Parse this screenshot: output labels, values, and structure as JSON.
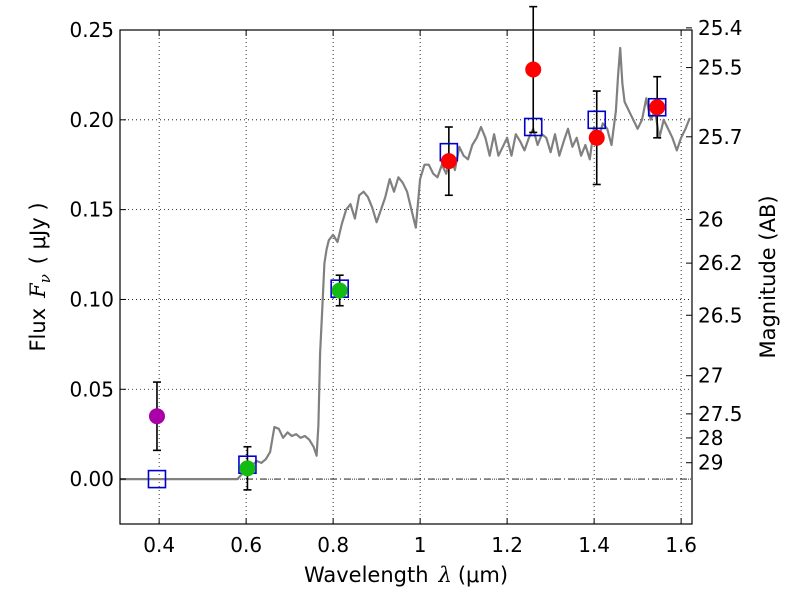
{
  "chart_data": {
    "type": "scatter",
    "xlabel": "Wavelength",
    "xlabel_symbol": "λ",
    "xlabel_unit": "(μm)",
    "ylabel": "Flux",
    "ylabel_symbol": "F",
    "ylabel_subscript": "ν",
    "ylabel_unit": "( μJy )",
    "y2label": "Magnitude (AB)",
    "xlim": [
      0.31,
      1.625
    ],
    "ylim": [
      -0.025,
      0.25
    ],
    "grid": true,
    "x_ticks": [
      {
        "value": 0.4,
        "label": "0.4"
      },
      {
        "value": 0.6,
        "label": "0.6"
      },
      {
        "value": 0.8,
        "label": "0.8"
      },
      {
        "value": 1.0,
        "label": "1"
      },
      {
        "value": 1.2,
        "label": "1.2"
      },
      {
        "value": 1.4,
        "label": "1.4"
      },
      {
        "value": 1.6,
        "label": "1.6"
      }
    ],
    "y_ticks": [
      {
        "value": 0.0,
        "label": "0.00"
      },
      {
        "value": 0.05,
        "label": "0.05"
      },
      {
        "value": 0.1,
        "label": "0.10"
      },
      {
        "value": 0.15,
        "label": "0.15"
      },
      {
        "value": 0.2,
        "label": "0.20"
      },
      {
        "value": 0.25,
        "label": "0.25"
      }
    ],
    "y2_ticks": [
      {
        "mag": 25.4,
        "label": "25.4"
      },
      {
        "mag": 25.5,
        "label": "25.5"
      },
      {
        "mag": 25.7,
        "label": "25.7"
      },
      {
        "mag": 26.0,
        "label": "26"
      },
      {
        "mag": 26.2,
        "label": "26.2"
      },
      {
        "mag": 26.5,
        "label": "26.5"
      },
      {
        "mag": 27.0,
        "label": "27"
      },
      {
        "mag": 27.5,
        "label": "27.5"
      },
      {
        "mag": 28.0,
        "label": "28"
      },
      {
        "mag": 29.0,
        "label": "29"
      }
    ],
    "zero_line": 0.0,
    "model_sed": {
      "color": "#808080",
      "x": [
        0.31,
        0.58,
        0.595,
        0.605,
        0.615,
        0.625,
        0.635,
        0.645,
        0.655,
        0.665,
        0.675,
        0.685,
        0.695,
        0.705,
        0.715,
        0.725,
        0.735,
        0.745,
        0.755,
        0.762,
        0.766,
        0.77,
        0.775,
        0.78,
        0.785,
        0.79,
        0.8,
        0.81,
        0.82,
        0.83,
        0.84,
        0.85,
        0.86,
        0.87,
        0.88,
        0.89,
        0.9,
        0.91,
        0.92,
        0.93,
        0.94,
        0.95,
        0.96,
        0.97,
        0.98,
        0.99,
        1.0,
        1.01,
        1.02,
        1.03,
        1.04,
        1.05,
        1.06,
        1.07,
        1.08,
        1.09,
        1.1,
        1.11,
        1.12,
        1.13,
        1.14,
        1.15,
        1.16,
        1.17,
        1.18,
        1.19,
        1.2,
        1.21,
        1.22,
        1.23,
        1.24,
        1.25,
        1.26,
        1.27,
        1.28,
        1.29,
        1.3,
        1.31,
        1.32,
        1.33,
        1.34,
        1.35,
        1.36,
        1.37,
        1.38,
        1.39,
        1.4,
        1.41,
        1.42,
        1.43,
        1.44,
        1.45,
        1.455,
        1.46,
        1.465,
        1.47,
        1.48,
        1.49,
        1.5,
        1.51,
        1.52,
        1.53,
        1.54,
        1.55,
        1.56,
        1.57,
        1.58,
        1.59,
        1.6,
        1.61,
        1.62
      ],
      "y": [
        0.0,
        0.0,
        0.004,
        0.006,
        0.008,
        0.01,
        0.009,
        0.011,
        0.015,
        0.029,
        0.028,
        0.023,
        0.026,
        0.024,
        0.025,
        0.023,
        0.024,
        0.022,
        0.018,
        0.013,
        0.03,
        0.07,
        0.095,
        0.12,
        0.128,
        0.133,
        0.136,
        0.132,
        0.142,
        0.15,
        0.153,
        0.145,
        0.158,
        0.16,
        0.157,
        0.151,
        0.143,
        0.15,
        0.157,
        0.167,
        0.16,
        0.168,
        0.165,
        0.16,
        0.15,
        0.14,
        0.167,
        0.175,
        0.175,
        0.17,
        0.168,
        0.175,
        0.17,
        0.18,
        0.172,
        0.185,
        0.18,
        0.178,
        0.186,
        0.19,
        0.196,
        0.19,
        0.18,
        0.192,
        0.18,
        0.185,
        0.19,
        0.18,
        0.192,
        0.188,
        0.183,
        0.19,
        0.195,
        0.186,
        0.192,
        0.19,
        0.182,
        0.192,
        0.18,
        0.188,
        0.195,
        0.185,
        0.19,
        0.18,
        0.186,
        0.178,
        0.196,
        0.19,
        0.198,
        0.195,
        0.186,
        0.205,
        0.225,
        0.24,
        0.22,
        0.21,
        0.205,
        0.2,
        0.195,
        0.2,
        0.212,
        0.2,
        0.205,
        0.19,
        0.2,
        0.195,
        0.19,
        0.183,
        0.19,
        0.195,
        0.201
      ]
    },
    "photometry": [
      {
        "name": "band-0.40",
        "x": 0.395,
        "y": 0.035,
        "err": 0.019,
        "model": 0.0,
        "color": "#aa00aa"
      },
      {
        "name": "band-0.60",
        "x": 0.603,
        "y": 0.006,
        "err": 0.012,
        "model": 0.008,
        "color": "#11bb11"
      },
      {
        "name": "band-0.81",
        "x": 0.815,
        "y": 0.105,
        "err": 0.0085,
        "model": 0.106,
        "color": "#11bb11"
      },
      {
        "name": "band-1.06",
        "x": 1.066,
        "y": 0.177,
        "err": 0.019,
        "model": 0.182,
        "color": "#ff0000"
      },
      {
        "name": "band-1.26",
        "x": 1.26,
        "y": 0.228,
        "err": 0.035,
        "model": 0.196,
        "color": "#ff0000"
      },
      {
        "name": "band-1.41",
        "x": 1.406,
        "y": 0.19,
        "err": 0.026,
        "model": 0.2,
        "color": "#ff0000"
      },
      {
        "name": "band-1.54",
        "x": 1.545,
        "y": 0.207,
        "err": 0.017,
        "model": 0.207,
        "color": "#ff0000"
      }
    ],
    "model_marker_color": "#0000cc",
    "errorbar_color": "#000000"
  }
}
